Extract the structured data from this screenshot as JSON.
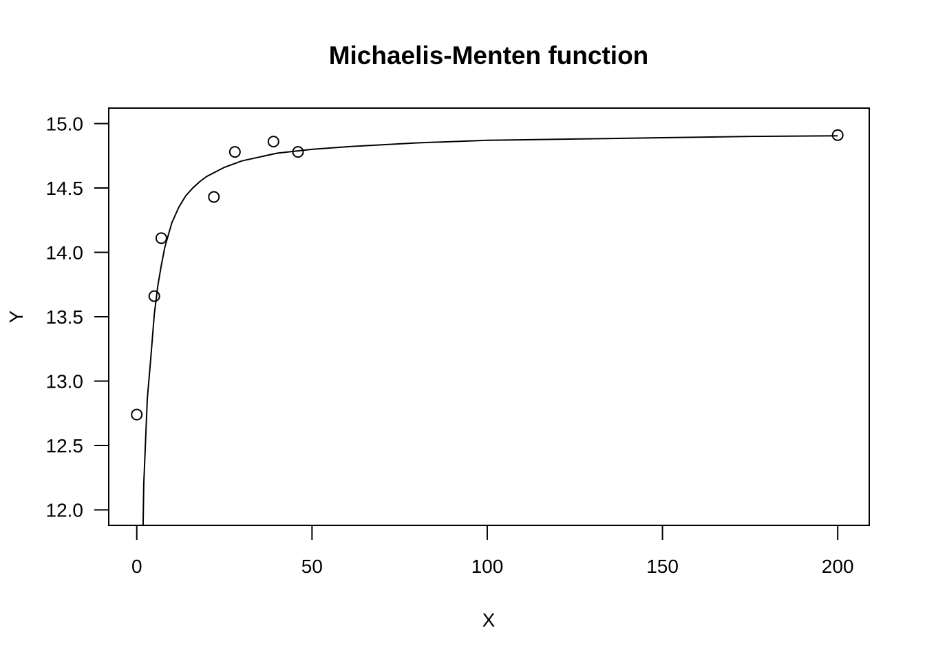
{
  "chart_data": {
    "type": "scatter",
    "title": "Michaelis-Menten function",
    "xlabel": "X",
    "ylabel": "Y",
    "xlim": [
      -8,
      209
    ],
    "ylim": [
      11.88,
      15.12
    ],
    "xticks": [
      0,
      50,
      100,
      150,
      200
    ],
    "xtick_labels": [
      "0",
      "50",
      "100",
      "150",
      "200"
    ],
    "yticks": [
      12.0,
      12.5,
      13.0,
      13.5,
      14.0,
      14.5,
      15.0
    ],
    "ytick_labels": [
      "12.0",
      "12.5",
      "13.0",
      "13.5",
      "14.0",
      "14.5",
      "15.0"
    ],
    "grid": false,
    "series": [
      {
        "kind": "points",
        "x": [
          0,
          5,
          7,
          22,
          28,
          39,
          46,
          200
        ],
        "y": [
          12.74,
          13.66,
          14.11,
          14.43,
          14.78,
          14.86,
          14.78,
          14.91
        ]
      },
      {
        "kind": "fitted-curve",
        "x": [
          1.8,
          2,
          3,
          4,
          5,
          6,
          7,
          8,
          10,
          12,
          14,
          16,
          18,
          20,
          25,
          30,
          40,
          50,
          60,
          80,
          100,
          125,
          150,
          175,
          200
        ],
        "y": [
          11.88,
          12.2,
          12.86,
          13.18,
          13.52,
          13.74,
          13.9,
          14.04,
          14.23,
          14.35,
          14.44,
          14.5,
          14.55,
          14.59,
          14.66,
          14.71,
          14.77,
          14.8,
          14.82,
          14.85,
          14.87,
          14.88,
          14.89,
          14.9,
          14.905
        ]
      }
    ]
  }
}
